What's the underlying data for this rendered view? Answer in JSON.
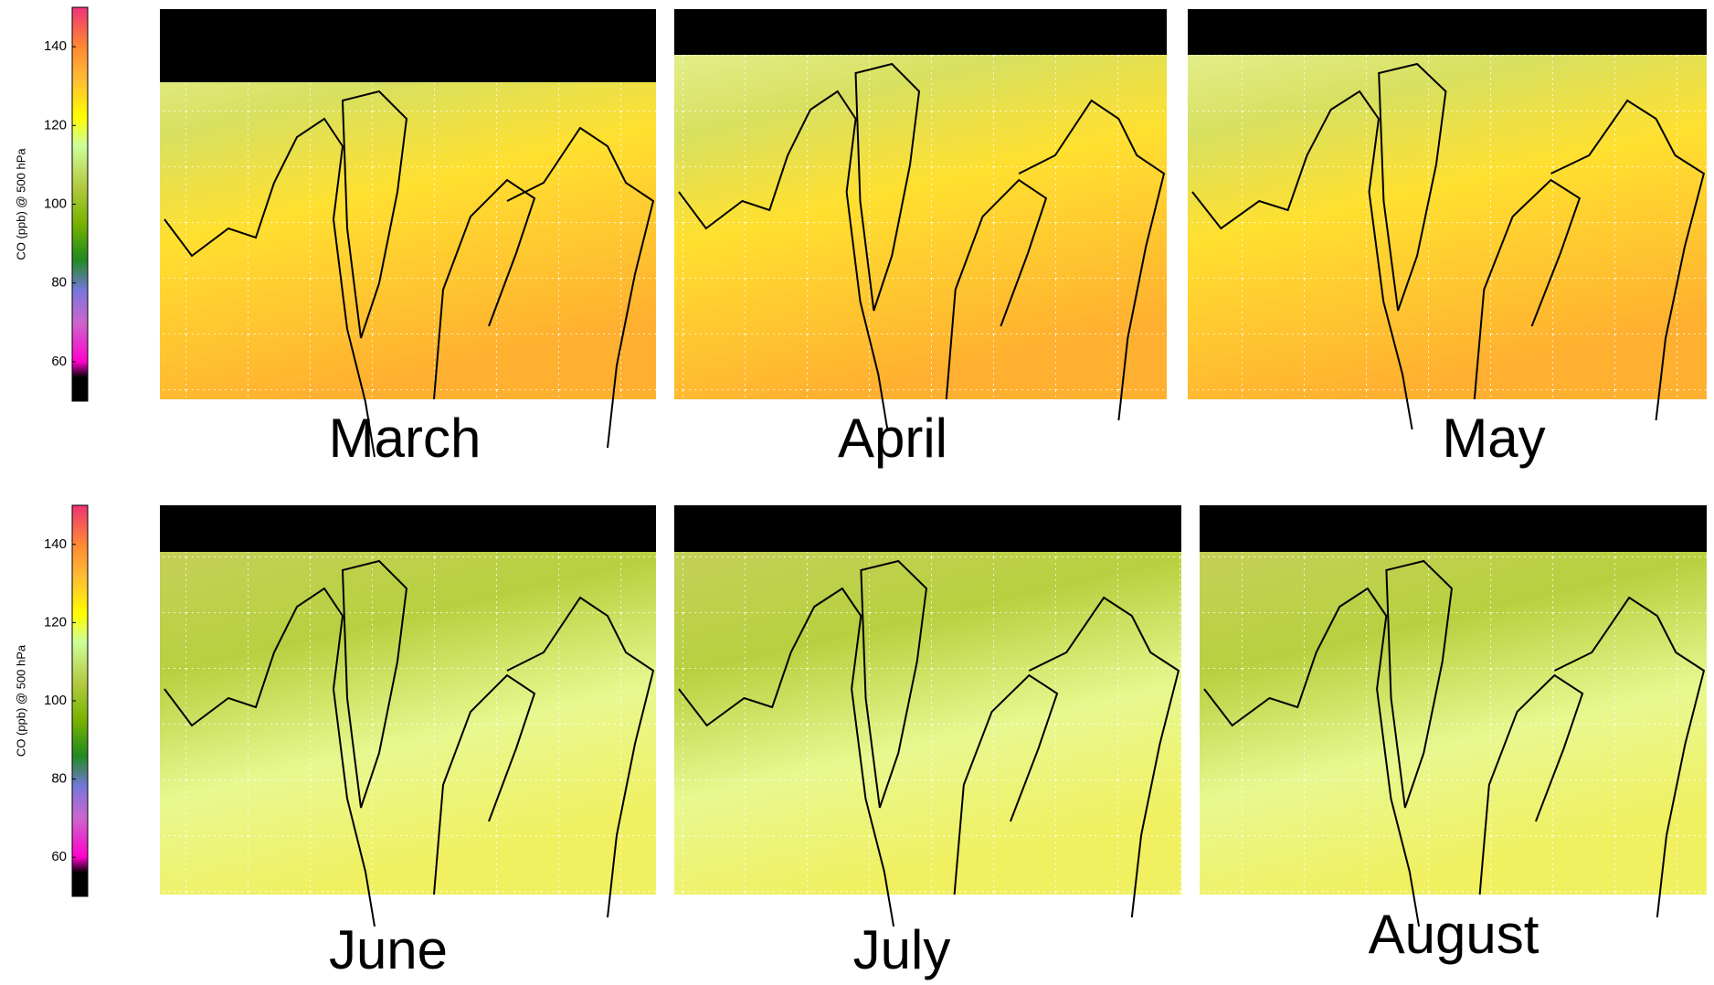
{
  "colorbars": [
    {
      "label": "CO (ppb) @ 500 hPa",
      "range": [
        50,
        150
      ],
      "ticks": [
        60,
        80,
        100,
        120,
        140
      ]
    },
    {
      "label": "CO (ppb) @ 500 hPa",
      "range": [
        50,
        150
      ],
      "ticks": [
        60,
        80,
        100,
        120,
        140
      ]
    }
  ],
  "panels": [
    {
      "label": "March"
    },
    {
      "label": "April"
    },
    {
      "label": "May"
    },
    {
      "label": "June"
    },
    {
      "label": "July"
    },
    {
      "label": "August"
    }
  ]
}
